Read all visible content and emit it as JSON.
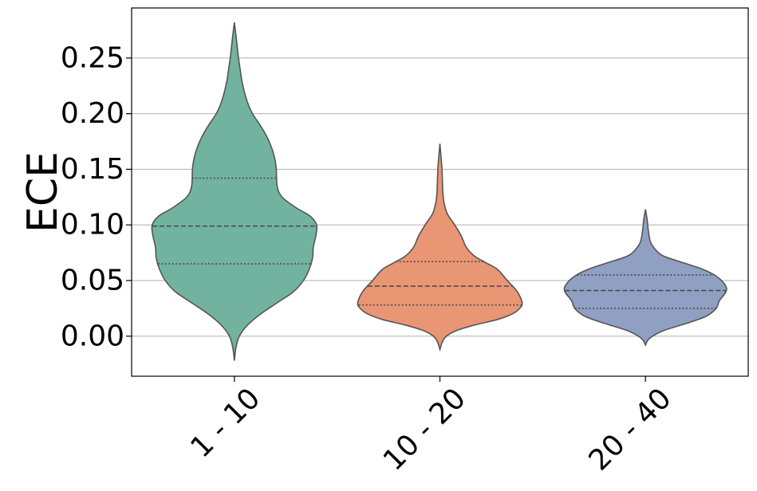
{
  "chart_data": {
    "type": "violin",
    "ylabel": "ECE",
    "xlabel": "",
    "categories": [
      "1 - 10",
      "10 - 20",
      "20 - 40"
    ],
    "yticks": [
      "0.00",
      "0.05",
      "0.10",
      "0.15",
      "0.20",
      "0.25"
    ],
    "ylim": [
      -0.036,
      0.295
    ],
    "grid": "horizontal",
    "colors": [
      "#72b3a0",
      "#e99675",
      "#8fa0c3"
    ],
    "outline_color": "#555555",
    "violins": [
      {
        "category": "1 - 10",
        "quartiles": {
          "q1": 0.065,
          "median": 0.099,
          "q3": 0.142
        },
        "range": [
          -0.022,
          0.282
        ],
        "profile": [
          [
            -0.022,
            0.0
          ],
          [
            -0.01,
            0.02
          ],
          [
            0.0,
            0.06
          ],
          [
            0.01,
            0.16
          ],
          [
            0.02,
            0.32
          ],
          [
            0.03,
            0.52
          ],
          [
            0.04,
            0.72
          ],
          [
            0.05,
            0.84
          ],
          [
            0.06,
            0.91
          ],
          [
            0.07,
            0.95
          ],
          [
            0.08,
            0.96
          ],
          [
            0.09,
            0.99
          ],
          [
            0.1,
            1.0
          ],
          [
            0.108,
            0.92
          ],
          [
            0.115,
            0.76
          ],
          [
            0.125,
            0.58
          ],
          [
            0.135,
            0.52
          ],
          [
            0.15,
            0.51
          ],
          [
            0.16,
            0.49
          ],
          [
            0.17,
            0.45
          ],
          [
            0.18,
            0.39
          ],
          [
            0.19,
            0.31
          ],
          [
            0.2,
            0.22
          ],
          [
            0.21,
            0.16
          ],
          [
            0.22,
            0.12
          ],
          [
            0.23,
            0.09
          ],
          [
            0.24,
            0.07
          ],
          [
            0.25,
            0.05
          ],
          [
            0.26,
            0.035
          ],
          [
            0.27,
            0.02
          ],
          [
            0.282,
            0.0
          ]
        ]
      },
      {
        "category": "10 - 20",
        "quartiles": {
          "q1": 0.028,
          "median": 0.045,
          "q3": 0.067
        },
        "range": [
          -0.012,
          0.173
        ],
        "profile": [
          [
            -0.012,
            0.0
          ],
          [
            -0.005,
            0.03
          ],
          [
            0.0,
            0.08
          ],
          [
            0.005,
            0.2
          ],
          [
            0.01,
            0.42
          ],
          [
            0.015,
            0.7
          ],
          [
            0.02,
            0.88
          ],
          [
            0.025,
            0.97
          ],
          [
            0.03,
            1.0
          ],
          [
            0.04,
            0.94
          ],
          [
            0.05,
            0.82
          ],
          [
            0.06,
            0.7
          ],
          [
            0.066,
            0.56
          ],
          [
            0.072,
            0.42
          ],
          [
            0.08,
            0.32
          ],
          [
            0.09,
            0.26
          ],
          [
            0.1,
            0.18
          ],
          [
            0.11,
            0.09
          ],
          [
            0.12,
            0.05
          ],
          [
            0.13,
            0.035
          ],
          [
            0.14,
            0.03
          ],
          [
            0.15,
            0.025
          ],
          [
            0.16,
            0.015
          ],
          [
            0.173,
            0.0
          ]
        ]
      },
      {
        "category": "20 - 40",
        "quartiles": {
          "q1": 0.025,
          "median": 0.041,
          "q3": 0.055
        },
        "range": [
          -0.008,
          0.114
        ],
        "profile": [
          [
            -0.008,
            0.0
          ],
          [
            -0.002,
            0.05
          ],
          [
            0.005,
            0.22
          ],
          [
            0.012,
            0.52
          ],
          [
            0.018,
            0.74
          ],
          [
            0.025,
            0.86
          ],
          [
            0.032,
            0.9
          ],
          [
            0.04,
            0.98
          ],
          [
            0.046,
            0.97
          ],
          [
            0.054,
            0.86
          ],
          [
            0.06,
            0.7
          ],
          [
            0.066,
            0.46
          ],
          [
            0.072,
            0.22
          ],
          [
            0.078,
            0.12
          ],
          [
            0.085,
            0.06
          ],
          [
            0.095,
            0.035
          ],
          [
            0.105,
            0.02
          ],
          [
            0.114,
            0.0
          ]
        ]
      }
    ]
  }
}
